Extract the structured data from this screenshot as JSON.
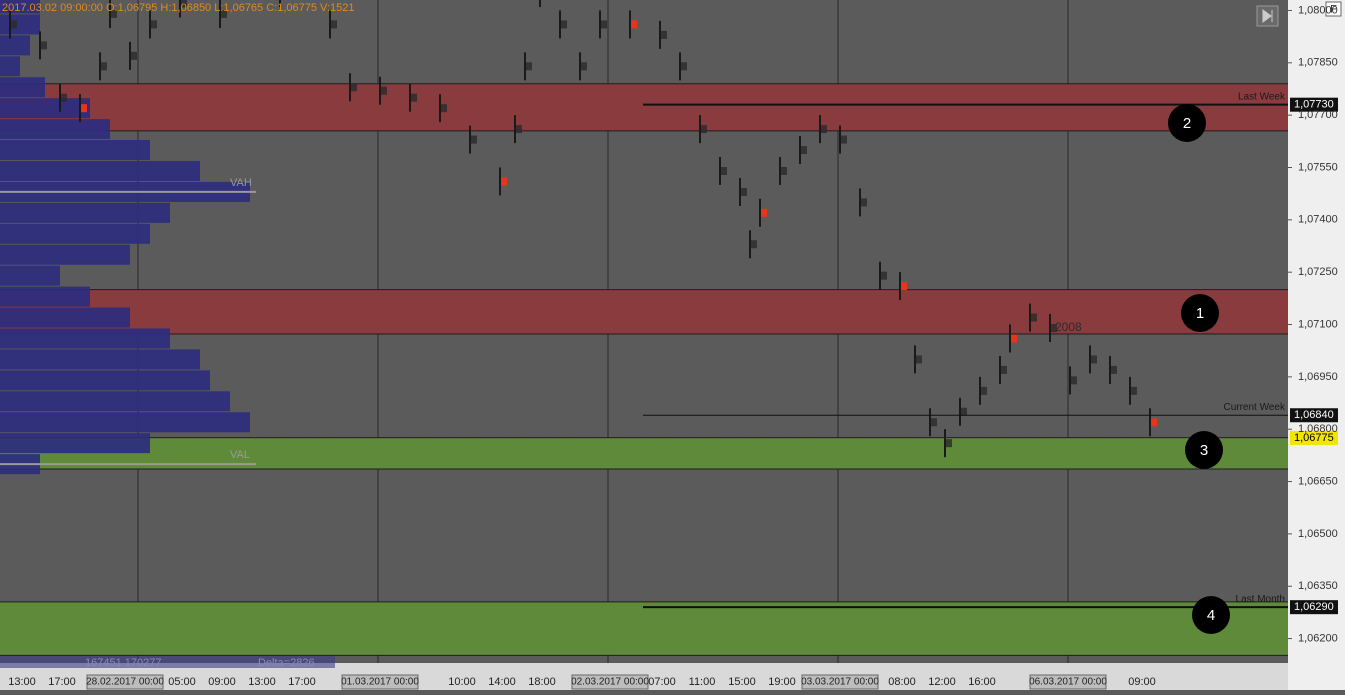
{
  "header": "2017.03.02 09:00:00  O:1,06795  H:1,06850  L:1,06765  C:1,06775  V:1521",
  "corner_button": "F",
  "price_axis": {
    "ylim": [
      1.0803,
      1.0613
    ],
    "ticks": [
      {
        "value": 1.08,
        "label": "1,08000"
      },
      {
        "value": 1.0785,
        "label": "1,07850"
      },
      {
        "value": 1.077,
        "label": "1,07700"
      },
      {
        "value": 1.0755,
        "label": "1,07550"
      },
      {
        "value": 1.074,
        "label": "1,07400"
      },
      {
        "value": 1.0725,
        "label": "1,07250"
      },
      {
        "value": 1.071,
        "label": "1,07100"
      },
      {
        "value": 1.0695,
        "label": "1,06950"
      },
      {
        "value": 1.068,
        "label": "1,06800"
      },
      {
        "value": 1.0665,
        "label": "1,06650"
      },
      {
        "value": 1.065,
        "label": "1,06500"
      },
      {
        "value": 1.0635,
        "label": "1,06350"
      },
      {
        "value": 1.062,
        "label": "1,06200"
      }
    ]
  },
  "time_axis": {
    "labels": [
      "13:00",
      "17:00",
      "28.02.2017 00:00",
      "05:00",
      "09:00",
      "13:00",
      "17:00",
      "01.03.2017 00:00",
      "10:00",
      "14:00",
      "18:00",
      "02.03.2017 00:00",
      "07:00",
      "11:00",
      "15:00",
      "19:00",
      "03.03.2017 00:00",
      "08:00",
      "12:00",
      "16:00",
      "06.03.2017 00:00",
      "09:00"
    ]
  },
  "zones": [
    {
      "label": "2",
      "color": "#8a3b3e",
      "top": 1.0779,
      "bottom": 1.07655
    },
    {
      "label": "1",
      "color": "#8a3b3e",
      "top": 1.072,
      "bottom": 1.07073
    },
    {
      "label": "3",
      "color": "#5e8a3a",
      "top": 1.06776,
      "bottom": 1.06686
    },
    {
      "label": "4",
      "color": "#5e8a3a",
      "top": 1.06305,
      "bottom": 1.06152
    }
  ],
  "levels": [
    {
      "name": "Last Week",
      "price": {
        "value": 1.0773,
        "label": "1,07730"
      }
    },
    {
      "name": "Current Week",
      "price": {
        "value": 1.0684,
        "label": "1,06840"
      }
    },
    {
      "name": "Last Month",
      "price": {
        "value": 1.0629,
        "label": "1,06290"
      }
    }
  ],
  "current_price": {
    "value": 1.06775,
    "label": "1,06775"
  },
  "price_path": {
    "xlim": [
      0,
      1288
    ],
    "x": [
      10,
      40,
      60,
      80,
      100,
      110,
      130,
      150,
      180,
      220,
      280,
      330,
      350,
      380,
      410,
      440,
      470,
      500,
      515,
      525,
      540,
      560,
      580,
      600,
      630,
      660,
      680,
      700,
      720,
      740,
      750,
      760,
      780,
      800,
      820,
      840,
      860,
      880,
      900,
      915,
      930,
      945,
      960,
      980,
      1000,
      1010,
      1030,
      1050,
      1070,
      1090,
      1110,
      1130,
      1150
    ],
    "values": [
      1.0796,
      1.079,
      1.0775,
      1.0772,
      1.0784,
      1.0799,
      1.0787,
      1.0796,
      1.0802,
      1.0799,
      1.0805,
      1.0796,
      1.0778,
      1.0777,
      1.0775,
      1.0772,
      1.0763,
      1.0751,
      1.0766,
      1.0784,
      1.0805,
      1.0796,
      1.0784,
      1.0796,
      1.0796,
      1.0793,
      1.0784,
      1.0766,
      1.0754,
      1.0748,
      1.0733,
      1.0742,
      1.0754,
      1.076,
      1.0766,
      1.0763,
      1.0745,
      1.0724,
      1.0721,
      1.07,
      1.0682,
      1.0676,
      1.0685,
      1.0691,
      1.0697,
      1.0706,
      1.0712,
      1.0709,
      1.0694,
      1.07,
      1.0697,
      1.0691,
      1.0682
    ]
  },
  "volume_profile": {
    "prices": [
      1.0802,
      1.0796,
      1.079,
      1.0784,
      1.0778,
      1.0772,
      1.0766,
      1.076,
      1.0754,
      1.0748,
      1.0742,
      1.0736,
      1.073,
      1.0724,
      1.0718,
      1.0712,
      1.0706,
      1.07,
      1.0694,
      1.0688,
      1.0682,
      1.0676,
      1.067
    ],
    "values": [
      40,
      40,
      30,
      20,
      45,
      90,
      110,
      150,
      200,
      250,
      170,
      150,
      130,
      60,
      90,
      130,
      170,
      200,
      210,
      230,
      250,
      150,
      40
    ],
    "vah": {
      "label": "VAH",
      "price": 1.0748
    },
    "val": {
      "label": "VAL",
      "price": 1.067
    }
  },
  "session_profile_label": "2008",
  "footer_volumes": "167451 170277",
  "footer_delta": "Delta=2826"
}
